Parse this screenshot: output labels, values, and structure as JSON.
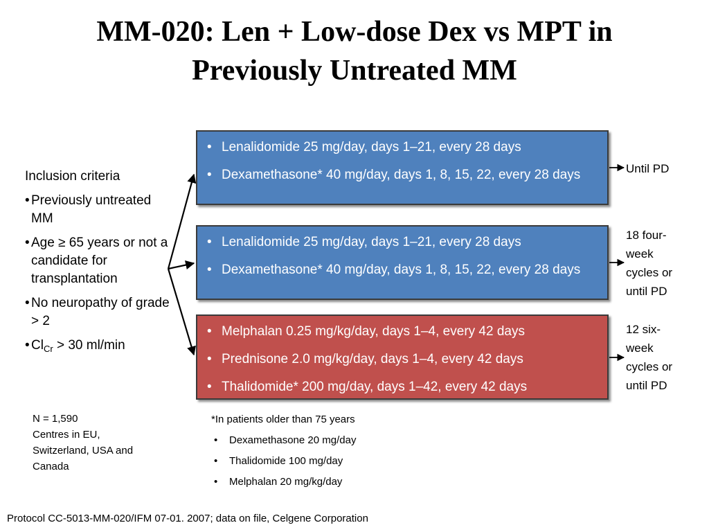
{
  "title": {
    "line1": "MM-020: Len + Low-dose Dex vs MPT in",
    "line2": "Previously Untreated MM"
  },
  "inclusion": {
    "heading": "Inclusion criteria",
    "bullet": "•",
    "items": [
      "Previously untreated MM",
      "Age ≥ 65 years or not a candidate for transplantation",
      "No neuropathy of grade > 2"
    ],
    "creatinine": {
      "prefix": "Cl",
      "subscript": "Cr",
      "suffix": " > 30 ml/min"
    }
  },
  "study_info": {
    "n": "N = 1,590",
    "centres_lines": [
      "Centres in EU,",
      "Switzerland, USA and",
      "Canada"
    ]
  },
  "arms": [
    {
      "color": "#4f81bd",
      "items": [
        "Lenalidomide 25 mg/day, days 1–21, every 28 days",
        "Dexamethasone* 40 mg/day, days 1, 8, 15, 22, every 28 days"
      ],
      "outcome_lines": [
        "Until PD"
      ]
    },
    {
      "color": "#4f81bd",
      "items": [
        "Lenalidomide 25 mg/day, days 1–21, every 28 days",
        "Dexamethasone* 40 mg/day, days 1, 8, 15, 22, every 28 days"
      ],
      "outcome_lines": [
        "18 four-",
        "week",
        "cycles or",
        "until PD"
      ]
    },
    {
      "color": "#c0504d",
      "items": [
        "Melphalan 0.25 mg/kg/day, days 1–4, every 42 days",
        "Prednisone 2.0 mg/kg/day, days 1–4, every 42 days",
        "Thalidomide* 200 mg/day, days 1–42, every 42 days"
      ],
      "outcome_lines": [
        "12 six-",
        "week",
        "cycles or",
        "until PD"
      ]
    }
  ],
  "footnote": {
    "heading": "*In patients older than 75 years",
    "items": [
      "Dexamethasone 20 mg/day",
      "Thalidomide 100 mg/day",
      "Melphalan 20 mg/kg/day"
    ]
  },
  "reference": "Protocol CC-5013-MM-020/IFM 07-01. 2007; data on file, Celgene Corporation"
}
